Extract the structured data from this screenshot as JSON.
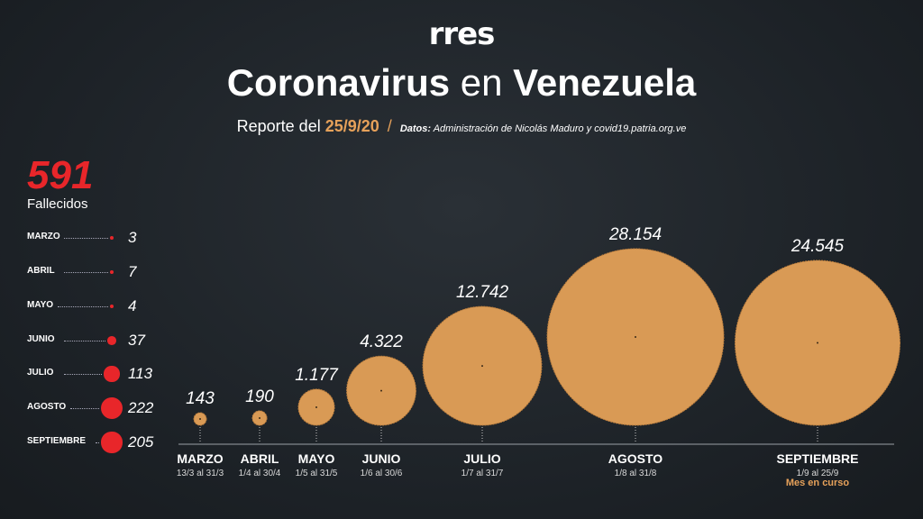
{
  "header": {
    "logo": "rres",
    "title_part1": "Coronavirus",
    "title_part2": "en",
    "title_part3": "Venezuela",
    "report_prefix": "Reporte del",
    "report_date": "25/9/20",
    "separator": "/",
    "source_label": "Datos:",
    "source_text": "Administración de Nicolás Maduro y covid19.patria.org.ve"
  },
  "deaths": {
    "total": "591",
    "label": "Fallecidos",
    "rows": [
      {
        "month": "MARZO",
        "value": "3"
      },
      {
        "month": "ABRIL",
        "value": "7"
      },
      {
        "month": "MAYO",
        "value": "4"
      },
      {
        "month": "JUNIO",
        "value": "37"
      },
      {
        "month": "JULIO",
        "value": "113"
      },
      {
        "month": "AGOSTO",
        "value": "222"
      },
      {
        "month": "SEPTIEMBRE",
        "value": "205"
      }
    ]
  },
  "chart_data": {
    "type": "bubble",
    "categories": [
      "MARZO",
      "ABRIL",
      "MAYO",
      "JUNIO",
      "JULIO",
      "AGOSTO",
      "SEPTIEMBRE"
    ],
    "ranges": [
      "13/3 al 31/3",
      "1/4 al 30/4",
      "1/5 al 31/5",
      "1/6 al 30/6",
      "1/7 al 31/7",
      "1/8 al 31/8",
      "1/9 al 25/9"
    ],
    "values": [
      143,
      190,
      1177,
      4322,
      12742,
      28154,
      24545
    ],
    "value_labels": [
      "143",
      "190",
      "1.177",
      "4.322",
      "12.742",
      "28.154",
      "24.545"
    ],
    "note": "Mes en curso",
    "bubble_color": "#d99a55"
  },
  "colors": {
    "accent": "#e6a15a",
    "deaths": "#e8262a",
    "bubble": "#d99a55",
    "background": "#1f2429"
  }
}
